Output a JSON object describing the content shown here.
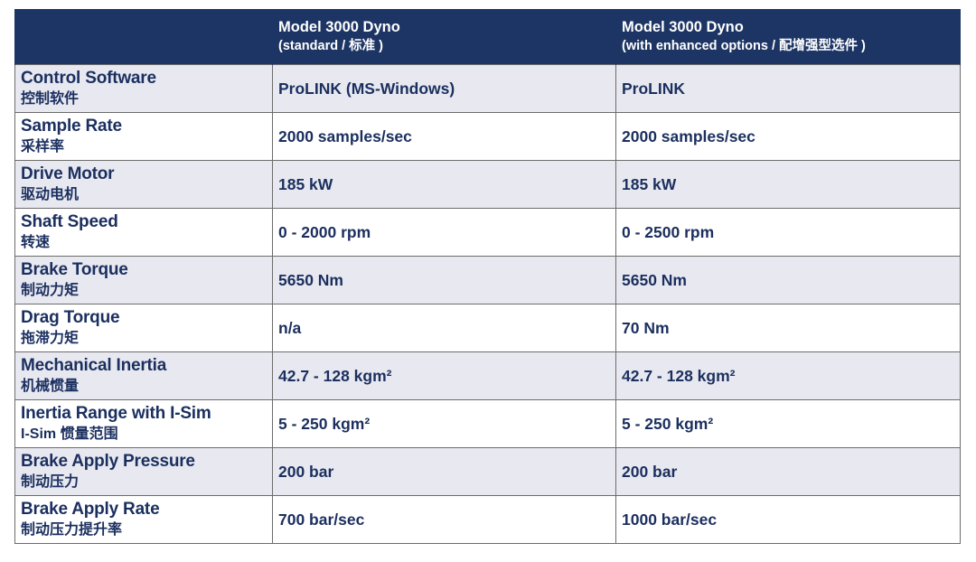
{
  "header": {
    "col1": "",
    "col2_title": "Model 3000 Dyno",
    "col2_sub": "(standard / 标准 )",
    "col3_title": "Model 3000 Dyno",
    "col3_sub": " (with enhanced options / 配增强型选件 )"
  },
  "rows": [
    {
      "label_en": "Control Software",
      "label_zh": "控制软件",
      "standard": "ProLINK (MS-Windows)",
      "enhanced": "ProLINK"
    },
    {
      "label_en": "Sample Rate",
      "label_zh": "采样率",
      "standard": "2000 samples/sec",
      "enhanced": "2000 samples/sec"
    },
    {
      "label_en": "Drive Motor",
      "label_zh": "驱动电机",
      "standard": "185 kW",
      "enhanced": "185 kW"
    },
    {
      "label_en": "Shaft Speed",
      "label_zh": "转速",
      "standard": "0 - 2000 rpm",
      "enhanced": "0 - 2500 rpm"
    },
    {
      "label_en": "Brake Torque",
      "label_zh": "制动力矩",
      "standard": "5650 Nm",
      "enhanced": "5650 Nm"
    },
    {
      "label_en": "Drag Torque",
      "label_zh": "拖滞力矩",
      "standard": "n/a",
      "enhanced": "70 Nm"
    },
    {
      "label_en": "Mechanical Inertia",
      "label_zh": "机械惯量",
      "standard": "42.7 - 128 kgm²",
      "enhanced": "42.7 - 128 kgm²"
    },
    {
      "label_en": "Inertia Range with I-Sim",
      "label_zh": "I-Sim 惯量范围",
      "standard": "5 - 250 kgm²",
      "enhanced": "5 - 250 kgm²"
    },
    {
      "label_en": "Brake Apply Pressure",
      "label_zh": "制动压力",
      "standard": "200 bar",
      "enhanced": "200 bar"
    },
    {
      "label_en": "Brake Apply Rate",
      "label_zh": "制动压力提升率",
      "standard": "700 bar/sec",
      "enhanced": "1000 bar/sec"
    }
  ]
}
